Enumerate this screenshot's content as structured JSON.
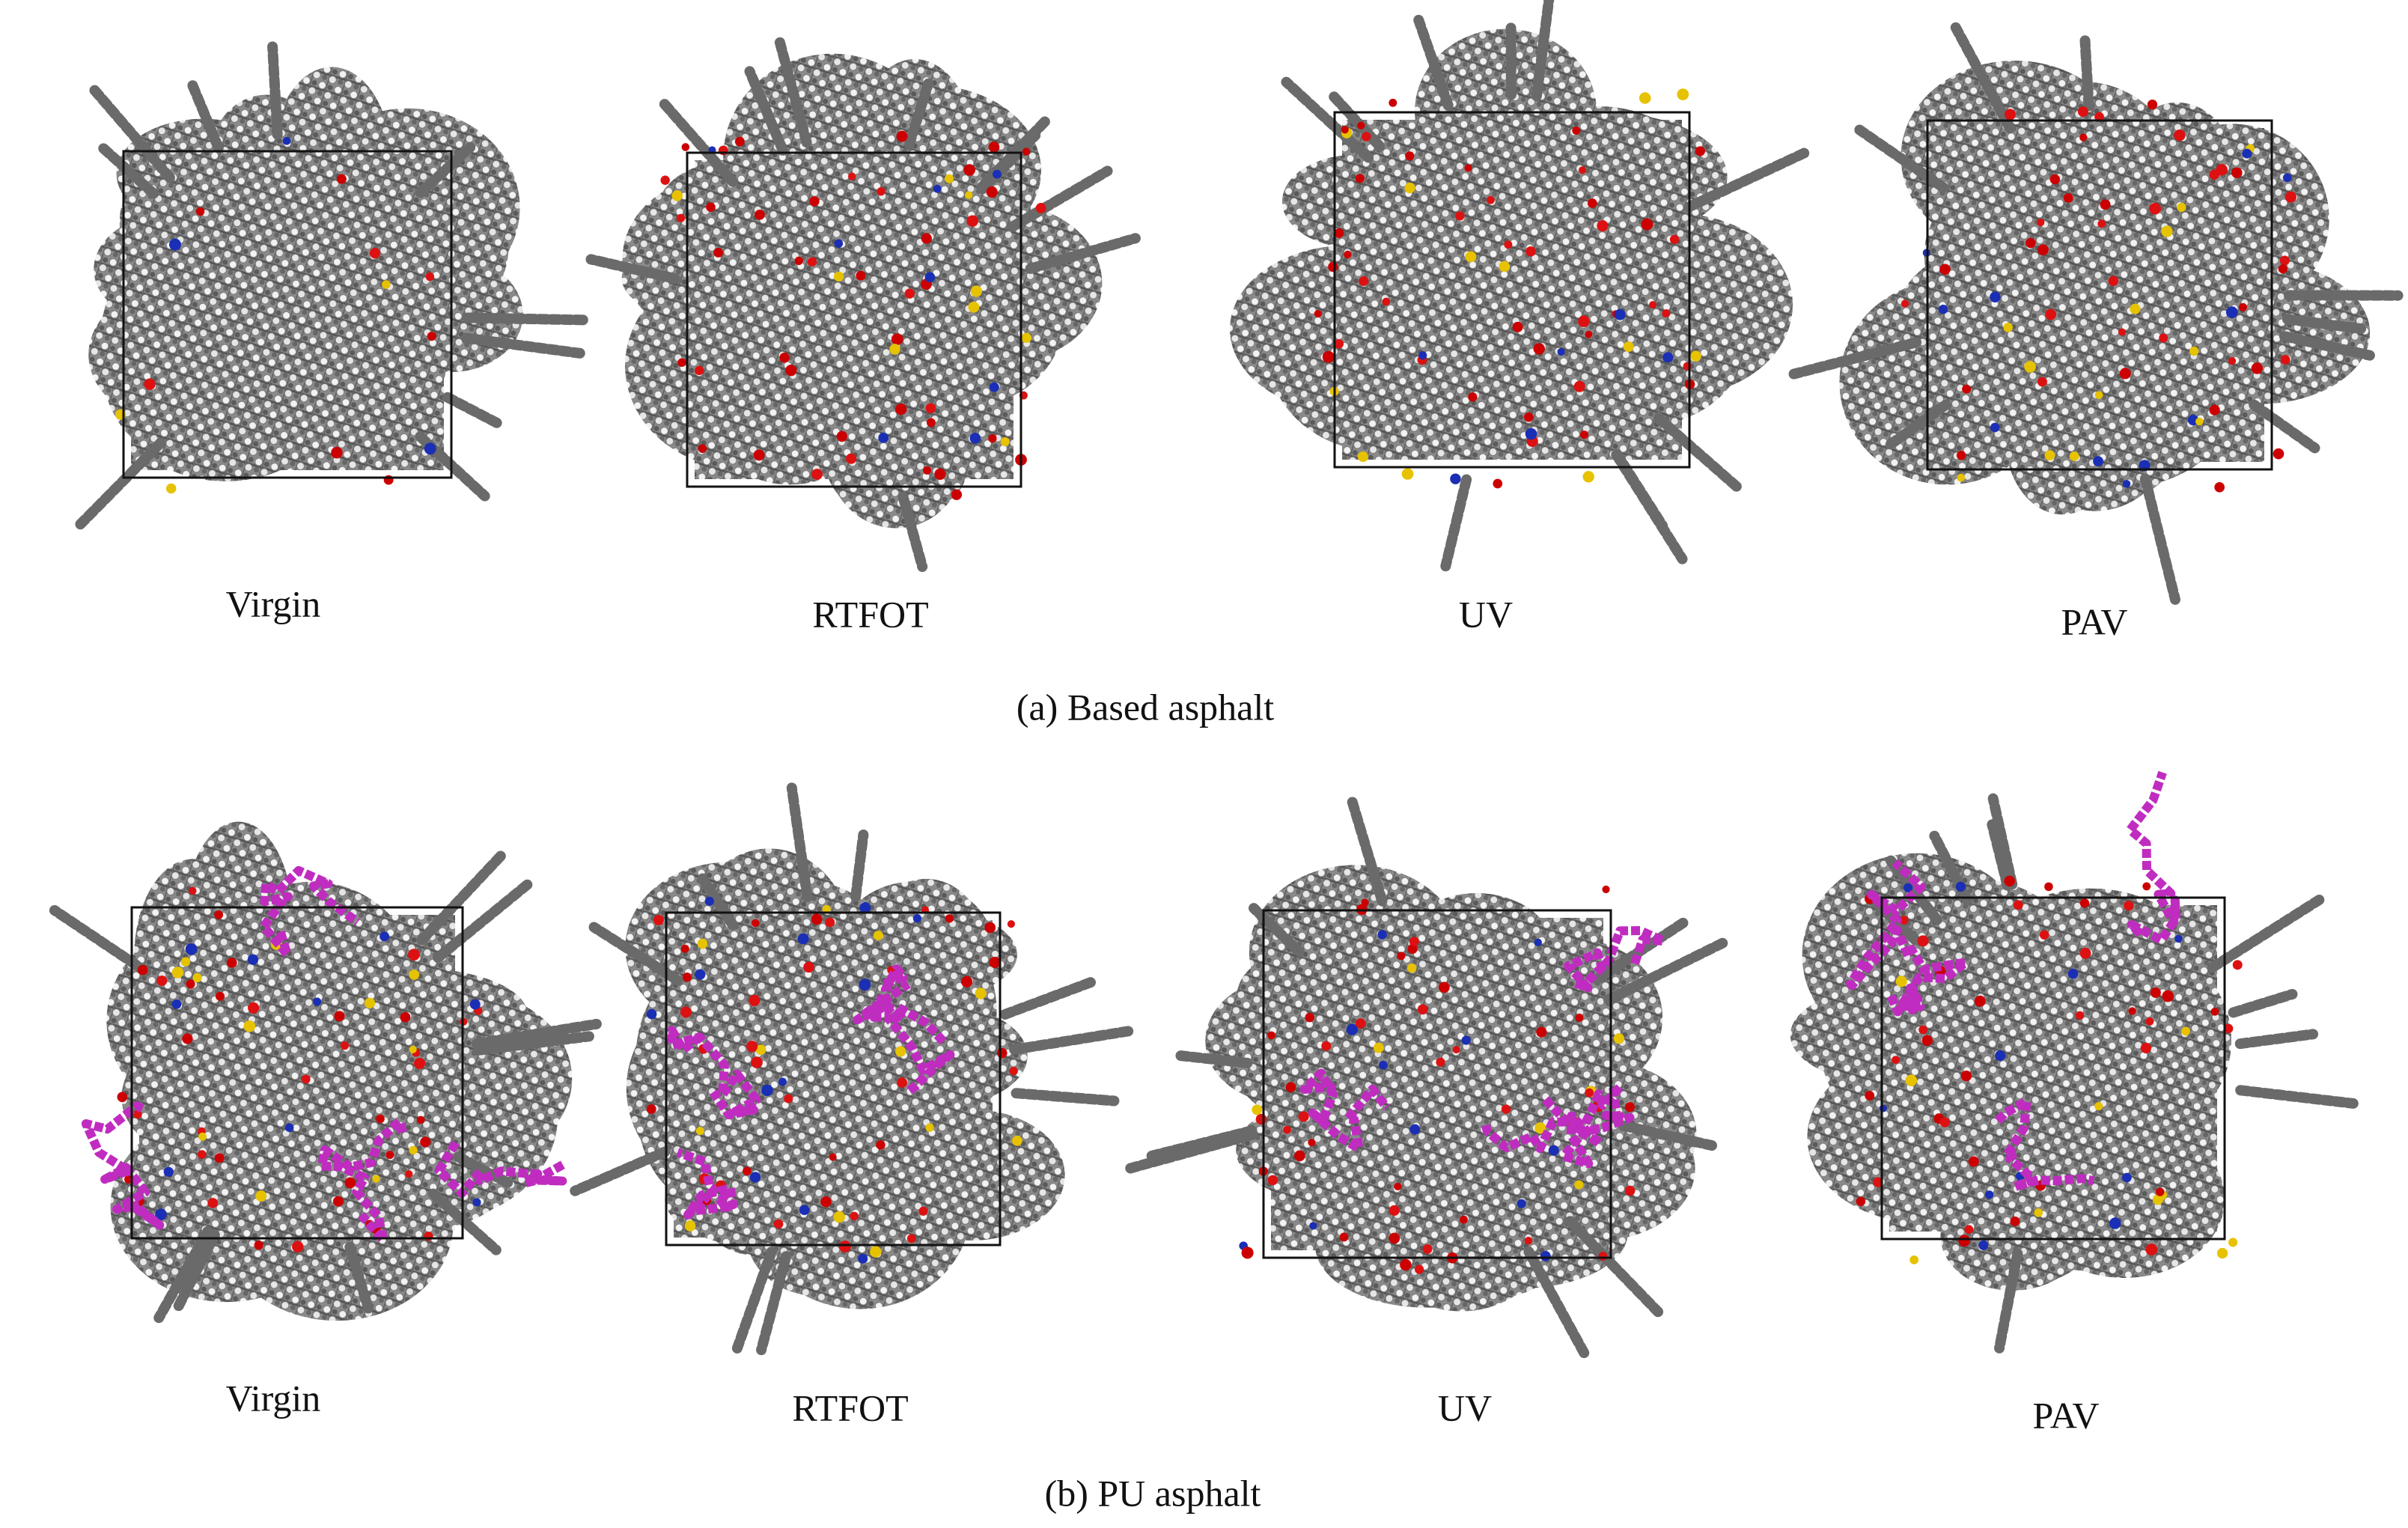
{
  "rows": [
    {
      "caption": "(a) Based asphalt",
      "panels": [
        "Virgin",
        "RTFOT",
        "UV",
        "PAV"
      ]
    },
    {
      "caption": "(b) PU asphalt",
      "panels": [
        "Virgin",
        "RTFOT",
        "UV",
        "PAV"
      ]
    }
  ]
}
